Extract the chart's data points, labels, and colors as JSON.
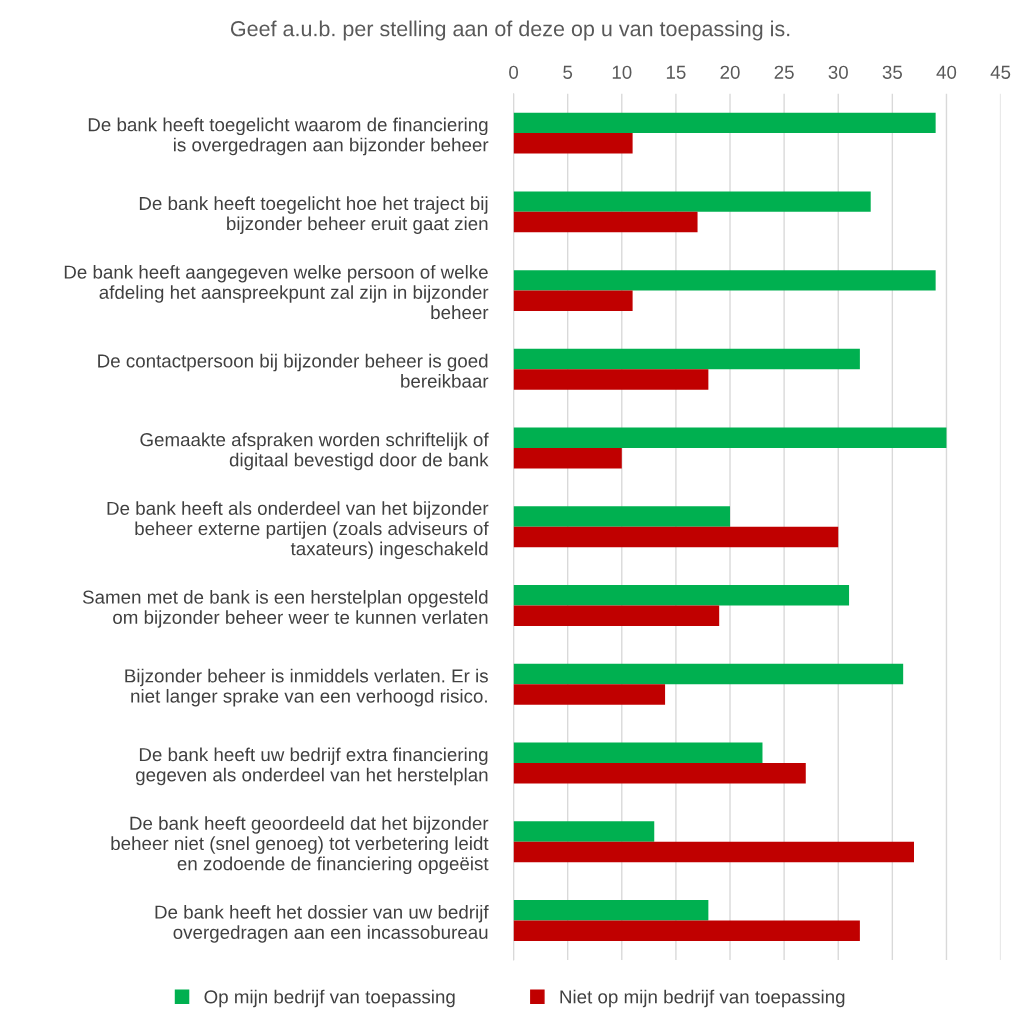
{
  "chart_data": {
    "type": "bar",
    "orientation": "horizontal",
    "title": "Geef a.u.b. per stelling aan of deze op u van toepassing is.",
    "categories": [
      "De bank heeft toegelicht waarom de financiering is overgedragen aan bijzonder beheer",
      "De bank heeft toegelicht hoe het traject bij bijzonder beheer eruit gaat zien",
      "De bank heeft aangegeven welke persoon of welke afdeling het aanspreekpunt zal zijn in bijzonder beheer",
      "De contactpersoon bij bijzonder beheer is goed bereikbaar",
      "Gemaakte afspraken worden schriftelijk of digitaal bevestigd door de bank",
      "De bank heeft als onderdeel van het bijzonder beheer externe partijen (zoals adviseurs of taxateurs) ingeschakeld",
      "Samen met de bank is een herstelplan opgesteld om bijzonder beheer weer te kunnen verlaten",
      "Bijzonder beheer is inmiddels verlaten. Er is niet langer sprake van een verhoogd risico.",
      "De bank heeft uw bedrijf extra financiering gegeven als onderdeel van het herstelplan",
      "De bank heeft geoordeeld dat het bijzonder beheer niet (snel genoeg) tot verbetering leidt en zodoende de financiering opgeëist",
      "De bank heeft het dossier van uw bedrijf overgedragen aan een incassobureau"
    ],
    "series": [
      {
        "name": "Op mijn bedrijf van toepassing",
        "color": "#00b050",
        "values": [
          39,
          33,
          39,
          32,
          40,
          20,
          31,
          36,
          23,
          13,
          18
        ]
      },
      {
        "name": "Niet op mijn bedrijf van toepassing",
        "color": "#c00000",
        "values": [
          11,
          17,
          11,
          18,
          10,
          30,
          19,
          14,
          27,
          37,
          32
        ]
      }
    ],
    "xlim": [
      0,
      45
    ],
    "xticks": [
      0,
      5,
      10,
      15,
      20,
      25,
      30,
      35,
      40,
      45
    ],
    "grid": "x",
    "legend": "bottom"
  }
}
